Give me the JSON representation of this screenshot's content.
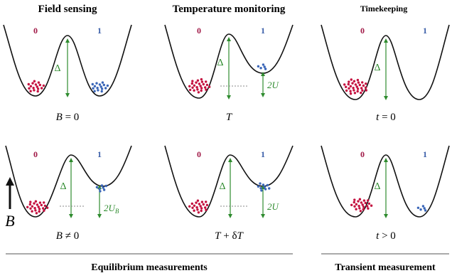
{
  "titles": {
    "field": "Field sensing",
    "temperature": "Temperature monitoring",
    "time": "Timekeeping"
  },
  "state_labels": {
    "zero": "0",
    "one": "1"
  },
  "barrier_label": "Δ",
  "energy_labels": {
    "field": "2U",
    "field_sub": "B",
    "temperature": "2U"
  },
  "conditions": {
    "field_top_var": "B",
    "field_top_rel": "= 0",
    "field_bottom_var": "B",
    "field_bottom_rel": "≠ 0",
    "temp_top_var": "T",
    "temp_bottom_var": "T",
    "temp_bottom_rel": "+ δ",
    "temp_bottom_var2": "T",
    "time_top_var": "t",
    "time_top_rel": "= 0",
    "time_bottom_var": "t",
    "time_bottom_rel": "> 0"
  },
  "field_arrow_label": "B",
  "footers": {
    "equilibrium": "Equilibrium measurements",
    "transient": "Transient measurement"
  },
  "colors": {
    "red": "#c4103f",
    "blue": "#3a66b8",
    "green": "#2e8b2e",
    "label_zero": "#a01846",
    "label_one": "#3a5ea8",
    "line": "#111111"
  }
}
